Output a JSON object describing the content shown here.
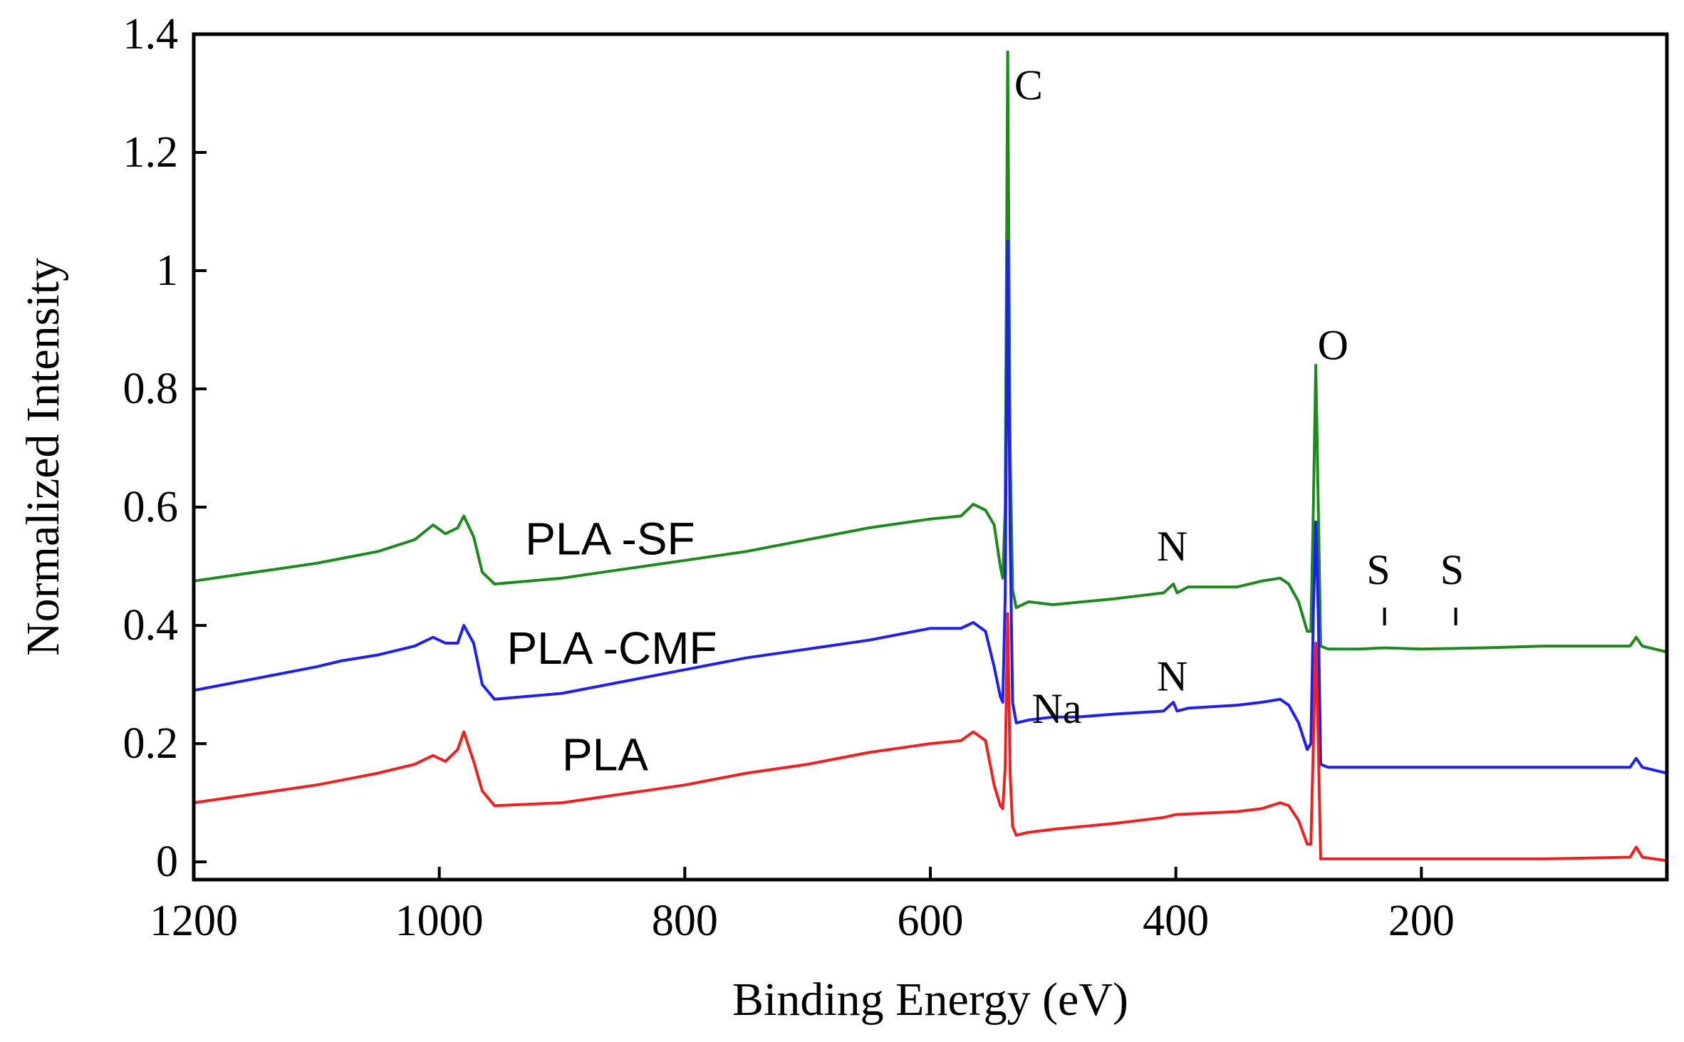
{
  "chart_data": {
    "type": "line",
    "title": "",
    "xlabel": "Binding Energy (eV)",
    "ylabel": "Normalized Intensity",
    "xlim": [
      1200,
      0
    ],
    "ylim": [
      -0.03,
      1.4
    ],
    "x_reversed": true,
    "grid": false,
    "x_ticks": [
      {
        "value": 1200,
        "label": "1200"
      },
      {
        "value": 1000,
        "label": "1000"
      },
      {
        "value": 800,
        "label": "800"
      },
      {
        "value": 600,
        "label": "600"
      },
      {
        "value": 400,
        "label": "400"
      },
      {
        "value": 200,
        "label": "200"
      }
    ],
    "y_ticks": [
      {
        "value": 0,
        "label": "0"
      },
      {
        "value": 0.2,
        "label": "0.2"
      },
      {
        "value": 0.4,
        "label": "0.4"
      },
      {
        "value": 0.6,
        "label": "0.6"
      },
      {
        "value": 0.8,
        "label": "0.8"
      },
      {
        "value": 1.0,
        "label": "1"
      },
      {
        "value": 1.2,
        "label": "1.2"
      },
      {
        "value": 1.4,
        "label": "1.4"
      }
    ],
    "series": [
      {
        "name": "PLA-SF",
        "label": "PLA -SF",
        "color": "#1e8a1e",
        "label_at": {
          "x": 930,
          "y": 0.52
        },
        "points": [
          [
            1200,
            0.475
          ],
          [
            1150,
            0.49
          ],
          [
            1100,
            0.505
          ],
          [
            1050,
            0.525
          ],
          [
            1020,
            0.545
          ],
          [
            1005,
            0.57
          ],
          [
            995,
            0.555
          ],
          [
            985,
            0.565
          ],
          [
            980,
            0.585
          ],
          [
            972,
            0.55
          ],
          [
            965,
            0.49
          ],
          [
            955,
            0.47
          ],
          [
            900,
            0.48
          ],
          [
            850,
            0.495
          ],
          [
            800,
            0.51
          ],
          [
            750,
            0.525
          ],
          [
            700,
            0.545
          ],
          [
            650,
            0.565
          ],
          [
            600,
            0.58
          ],
          [
            575,
            0.585
          ],
          [
            565,
            0.605
          ],
          [
            555,
            0.595
          ],
          [
            548,
            0.57
          ],
          [
            543,
            0.5
          ],
          [
            541,
            0.48
          ],
          [
            539,
            0.6
          ],
          [
            537,
            1.37
          ],
          [
            535,
            0.7
          ],
          [
            533,
            0.46
          ],
          [
            530,
            0.43
          ],
          [
            520,
            0.44
          ],
          [
            500,
            0.435
          ],
          [
            450,
            0.445
          ],
          [
            410,
            0.455
          ],
          [
            402,
            0.47
          ],
          [
            399,
            0.455
          ],
          [
            390,
            0.465
          ],
          [
            350,
            0.465
          ],
          [
            330,
            0.475
          ],
          [
            315,
            0.48
          ],
          [
            308,
            0.47
          ],
          [
            300,
            0.44
          ],
          [
            293,
            0.39
          ],
          [
            290,
            0.39
          ],
          [
            288,
            0.6
          ],
          [
            286,
            0.84
          ],
          [
            284,
            0.6
          ],
          [
            282,
            0.365
          ],
          [
            276,
            0.36
          ],
          [
            250,
            0.36
          ],
          [
            230,
            0.362
          ],
          [
            200,
            0.36
          ],
          [
            150,
            0.362
          ],
          [
            100,
            0.365
          ],
          [
            50,
            0.365
          ],
          [
            30,
            0.365
          ],
          [
            25,
            0.38
          ],
          [
            20,
            0.365
          ],
          [
            0,
            0.355
          ]
        ]
      },
      {
        "name": "PLA-CMF",
        "label": "PLA -CMF",
        "color": "#1f1ff0",
        "label_at": {
          "x": 945,
          "y": 0.335
        },
        "points": [
          [
            1200,
            0.29
          ],
          [
            1150,
            0.31
          ],
          [
            1100,
            0.33
          ],
          [
            1080,
            0.34
          ],
          [
            1050,
            0.35
          ],
          [
            1020,
            0.365
          ],
          [
            1005,
            0.38
          ],
          [
            995,
            0.37
          ],
          [
            985,
            0.37
          ],
          [
            980,
            0.4
          ],
          [
            972,
            0.37
          ],
          [
            965,
            0.3
          ],
          [
            955,
            0.275
          ],
          [
            900,
            0.285
          ],
          [
            850,
            0.305
          ],
          [
            800,
            0.325
          ],
          [
            750,
            0.345
          ],
          [
            700,
            0.36
          ],
          [
            650,
            0.375
          ],
          [
            600,
            0.395
          ],
          [
            575,
            0.395
          ],
          [
            565,
            0.405
          ],
          [
            555,
            0.39
          ],
          [
            548,
            0.33
          ],
          [
            543,
            0.28
          ],
          [
            541,
            0.27
          ],
          [
            539,
            0.45
          ],
          [
            537,
            1.05
          ],
          [
            535,
            0.55
          ],
          [
            533,
            0.27
          ],
          [
            530,
            0.235
          ],
          [
            520,
            0.24
          ],
          [
            500,
            0.245
          ],
          [
            480,
            0.245
          ],
          [
            450,
            0.25
          ],
          [
            410,
            0.255
          ],
          [
            402,
            0.27
          ],
          [
            399,
            0.255
          ],
          [
            390,
            0.26
          ],
          [
            350,
            0.265
          ],
          [
            330,
            0.27
          ],
          [
            315,
            0.275
          ],
          [
            308,
            0.265
          ],
          [
            300,
            0.235
          ],
          [
            293,
            0.19
          ],
          [
            290,
            0.2
          ],
          [
            288,
            0.42
          ],
          [
            286,
            0.575
          ],
          [
            284,
            0.42
          ],
          [
            282,
            0.165
          ],
          [
            276,
            0.16
          ],
          [
            250,
            0.16
          ],
          [
            200,
            0.16
          ],
          [
            150,
            0.16
          ],
          [
            100,
            0.16
          ],
          [
            50,
            0.16
          ],
          [
            30,
            0.16
          ],
          [
            25,
            0.175
          ],
          [
            20,
            0.16
          ],
          [
            0,
            0.15
          ]
        ]
      },
      {
        "name": "PLA",
        "label": "PLA",
        "color": "#f02020",
        "label_at": {
          "x": 900,
          "y": 0.155
        },
        "points": [
          [
            1200,
            0.1
          ],
          [
            1150,
            0.115
          ],
          [
            1100,
            0.13
          ],
          [
            1050,
            0.15
          ],
          [
            1020,
            0.165
          ],
          [
            1005,
            0.18
          ],
          [
            995,
            0.17
          ],
          [
            985,
            0.19
          ],
          [
            980,
            0.22
          ],
          [
            972,
            0.17
          ],
          [
            965,
            0.12
          ],
          [
            955,
            0.095
          ],
          [
            900,
            0.1
          ],
          [
            850,
            0.115
          ],
          [
            800,
            0.13
          ],
          [
            750,
            0.15
          ],
          [
            700,
            0.165
          ],
          [
            650,
            0.185
          ],
          [
            600,
            0.2
          ],
          [
            575,
            0.205
          ],
          [
            565,
            0.22
          ],
          [
            555,
            0.205
          ],
          [
            548,
            0.13
          ],
          [
            543,
            0.095
          ],
          [
            541,
            0.09
          ],
          [
            539,
            0.16
          ],
          [
            537,
            0.42
          ],
          [
            535,
            0.15
          ],
          [
            533,
            0.06
          ],
          [
            530,
            0.045
          ],
          [
            520,
            0.05
          ],
          [
            500,
            0.055
          ],
          [
            450,
            0.065
          ],
          [
            410,
            0.075
          ],
          [
            400,
            0.08
          ],
          [
            350,
            0.085
          ],
          [
            330,
            0.09
          ],
          [
            315,
            0.1
          ],
          [
            308,
            0.095
          ],
          [
            300,
            0.07
          ],
          [
            293,
            0.03
          ],
          [
            290,
            0.03
          ],
          [
            288,
            0.2
          ],
          [
            286,
            0.37
          ],
          [
            284,
            0.2
          ],
          [
            282,
            0.005
          ],
          [
            276,
            0.005
          ],
          [
            250,
            0.005
          ],
          [
            200,
            0.005
          ],
          [
            150,
            0.005
          ],
          [
            100,
            0.005
          ],
          [
            50,
            0.007
          ],
          [
            30,
            0.008
          ],
          [
            25,
            0.025
          ],
          [
            20,
            0.008
          ],
          [
            0,
            0.002
          ]
        ]
      }
    ],
    "annotations": [
      {
        "text": "C",
        "x": 520,
        "y": 1.29
      },
      {
        "text": "O",
        "x": 272,
        "y": 0.85
      },
      {
        "text": "N",
        "x": 403,
        "y": 0.51
      },
      {
        "text": "N",
        "x": 403,
        "y": 0.29
      },
      {
        "text": "Na",
        "x": 497,
        "y": 0.235
      },
      {
        "text": "S",
        "x": 235,
        "y": 0.47
      },
      {
        "text": "S",
        "x": 175,
        "y": 0.47
      }
    ],
    "markers": [
      {
        "label": "S",
        "x": 230,
        "y_top": 0.43,
        "y_bottom": 0.4
      },
      {
        "label": "S",
        "x": 172,
        "y_top": 0.43,
        "y_bottom": 0.4
      }
    ]
  }
}
